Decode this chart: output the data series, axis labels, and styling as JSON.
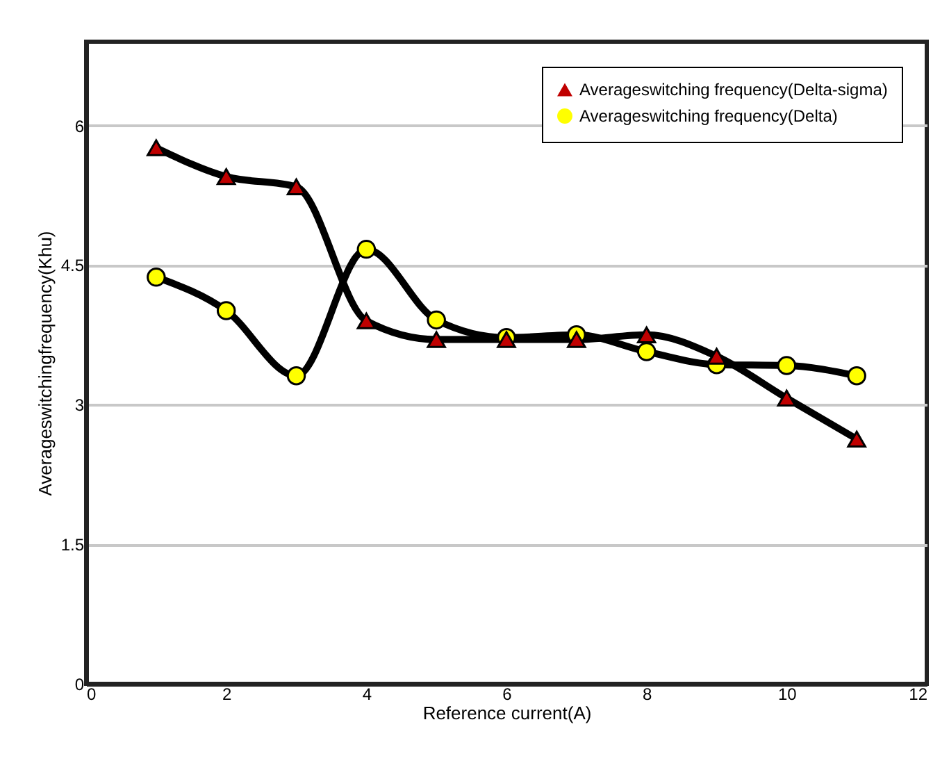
{
  "chart_data": {
    "type": "line",
    "xlabel": "Reference current(A)",
    "ylabel": "Averageswitchingfrequency(Khu)",
    "x": [
      1,
      2,
      3,
      4,
      5,
      6,
      7,
      8,
      9,
      10,
      11
    ],
    "series": [
      {
        "name": "Averageswitching frequency(Delta-sigma)",
        "color": "#c00000",
        "marker": "triangle",
        "values": [
          5.76,
          5.45,
          5.34,
          3.9,
          3.7,
          3.7,
          3.7,
          3.75,
          3.52,
          3.07,
          2.63
        ]
      },
      {
        "name": "Averageswitching frequency(Delta)",
        "color": "#ffff00",
        "marker": "circle",
        "values": [
          4.37,
          4.01,
          3.31,
          4.67,
          3.91,
          3.72,
          3.75,
          3.57,
          3.43,
          3.42,
          3.31
        ]
      }
    ],
    "xlim": [
      0,
      12
    ],
    "xticks": [
      0,
      2,
      4,
      6,
      8,
      10,
      12
    ],
    "ylim": [
      0,
      6.9
    ],
    "yticks": [
      0,
      1.5,
      3,
      4.5,
      6
    ],
    "grid": "y",
    "legend": "top right",
    "line_style": "solid"
  }
}
